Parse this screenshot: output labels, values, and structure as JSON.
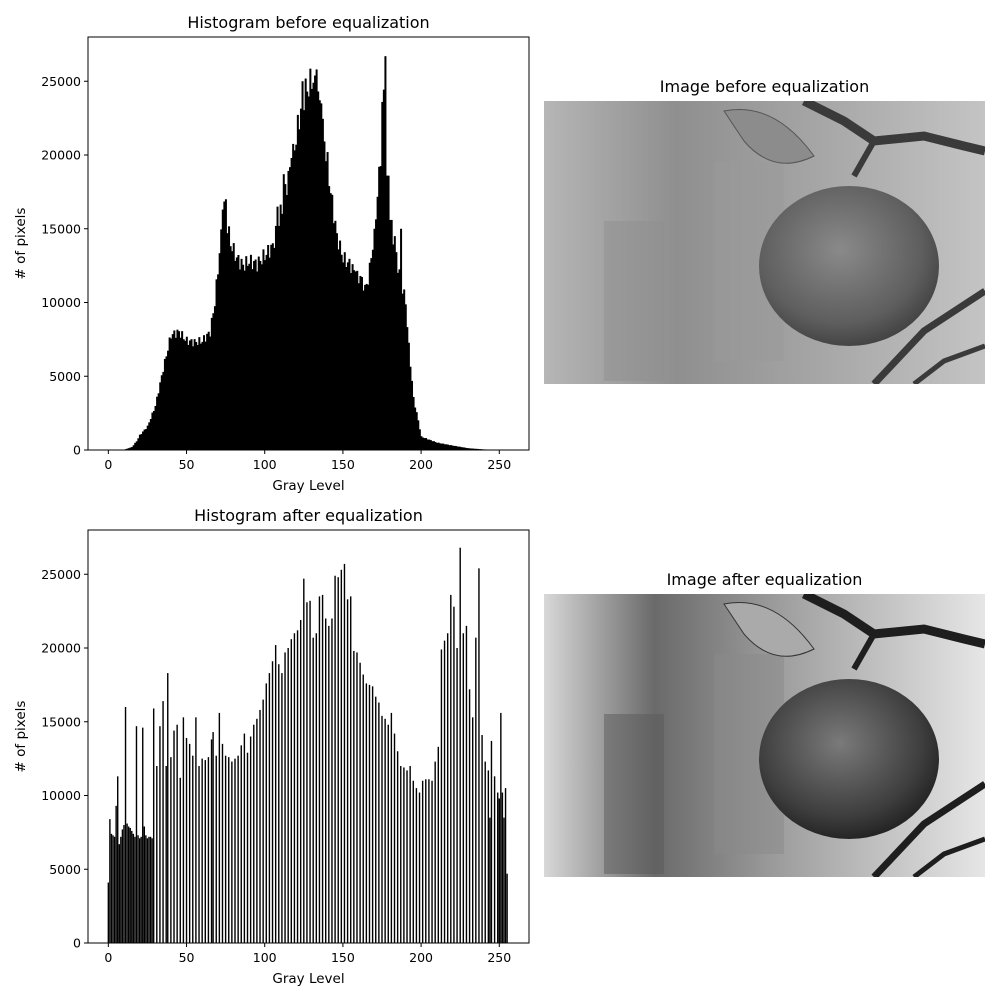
{
  "chart_data": [
    {
      "type": "bar",
      "title": "Histogram before equalization",
      "xlabel": "Gray Level",
      "ylabel": "# of pixels",
      "xlim": [
        -13,
        269
      ],
      "ylim": [
        0,
        28000
      ],
      "xticks": [
        0,
        50,
        100,
        150,
        200,
        250
      ],
      "yticks": [
        0,
        5000,
        10000,
        15000,
        20000,
        25000
      ],
      "grid": false,
      "shape": {
        "anchors": [
          [
            0,
            0
          ],
          [
            10,
            20
          ],
          [
            15,
            200
          ],
          [
            18,
            600
          ],
          [
            20,
            1000
          ],
          [
            25,
            1600
          ],
          [
            30,
            3000
          ],
          [
            35,
            5500
          ],
          [
            40,
            7800
          ],
          [
            45,
            8000
          ],
          [
            50,
            7400
          ],
          [
            55,
            7300
          ],
          [
            60,
            7400
          ],
          [
            65,
            8000
          ],
          [
            68,
            10000
          ],
          [
            72,
            14500
          ],
          [
            74,
            16500
          ],
          [
            78,
            14000
          ],
          [
            82,
            13000
          ],
          [
            86,
            12500
          ],
          [
            90,
            12800
          ],
          [
            95,
            12600
          ],
          [
            100,
            13200
          ],
          [
            105,
            13800
          ],
          [
            110,
            16000
          ],
          [
            115,
            18500
          ],
          [
            118,
            20000
          ],
          [
            122,
            22500
          ],
          [
            126,
            24500
          ],
          [
            130,
            25000
          ],
          [
            134,
            24000
          ],
          [
            138,
            21000
          ],
          [
            142,
            17500
          ],
          [
            146,
            14500
          ],
          [
            150,
            13000
          ],
          [
            155,
            12500
          ],
          [
            160,
            11500
          ],
          [
            165,
            11000
          ],
          [
            168,
            13000
          ],
          [
            171,
            16000
          ],
          [
            174,
            20000
          ],
          [
            176,
            24000
          ],
          [
            178,
            18000
          ],
          [
            181,
            15000
          ],
          [
            184,
            13000
          ],
          [
            188,
            11000
          ],
          [
            190,
            10000
          ],
          [
            192,
            7000
          ],
          [
            195,
            3500
          ],
          [
            198,
            2000
          ],
          [
            200,
            900
          ],
          [
            210,
            500
          ],
          [
            220,
            300
          ],
          [
            230,
            120
          ],
          [
            240,
            40
          ],
          [
            255,
            0
          ]
        ],
        "spikes": [
          [
            73,
            16300
          ],
          [
            75,
            17000
          ],
          [
            108,
            16500
          ],
          [
            112,
            18700
          ],
          [
            117,
            19800
          ],
          [
            120,
            20700
          ],
          [
            124,
            25000
          ],
          [
            127,
            24300
          ],
          [
            131,
            24900
          ],
          [
            133,
            25800
          ],
          [
            136,
            23500
          ],
          [
            140,
            20200
          ],
          [
            148,
            14200
          ],
          [
            158,
            12100
          ],
          [
            161,
            11800
          ],
          [
            170,
            15000
          ],
          [
            173,
            19200
          ],
          [
            175,
            23600
          ],
          [
            177,
            26700
          ],
          [
            179,
            18600
          ],
          [
            183,
            14500
          ],
          [
            187,
            15000
          ]
        ]
      }
    },
    {
      "type": "bar",
      "title": "Histogram after equalization",
      "xlabel": "Gray Level",
      "ylabel": "# of pixels",
      "xlim": [
        -13,
        269
      ],
      "ylim": [
        0,
        28000
      ],
      "xticks": [
        0,
        50,
        100,
        150,
        200,
        250
      ],
      "yticks": [
        0,
        5000,
        10000,
        15000,
        20000,
        25000
      ],
      "grid": false,
      "bars": [
        [
          0,
          4100
        ],
        [
          1,
          8400
        ],
        [
          2,
          7400
        ],
        [
          3,
          7300
        ],
        [
          4,
          7200
        ],
        [
          5,
          9300
        ],
        [
          6,
          11300
        ],
        [
          7,
          6700
        ],
        [
          8,
          7200
        ],
        [
          9,
          7700
        ],
        [
          10,
          8000
        ],
        [
          11,
          16000
        ],
        [
          12,
          8100
        ],
        [
          13,
          7900
        ],
        [
          14,
          7800
        ],
        [
          15,
          7600
        ],
        [
          16,
          7400
        ],
        [
          17,
          7200
        ],
        [
          18,
          14700
        ],
        [
          19,
          7300
        ],
        [
          20,
          7100
        ],
        [
          21,
          7200
        ],
        [
          22,
          14600
        ],
        [
          23,
          7900
        ],
        [
          24,
          7300
        ],
        [
          25,
          7100
        ],
        [
          26,
          7200
        ],
        [
          27,
          7200
        ],
        [
          28,
          7100
        ],
        [
          29,
          15900
        ],
        [
          31,
          12000
        ],
        [
          33,
          14700
        ],
        [
          35,
          16400
        ],
        [
          37,
          12000
        ],
        [
          38,
          18300
        ],
        [
          40,
          12600
        ],
        [
          42,
          14400
        ],
        [
          44,
          14800
        ],
        [
          46,
          11200
        ],
        [
          48,
          15300
        ],
        [
          50,
          13900
        ],
        [
          52,
          13500
        ],
        [
          54,
          12700
        ],
        [
          56,
          15300
        ],
        [
          58,
          12000
        ],
        [
          60,
          12500
        ],
        [
          62,
          12400
        ],
        [
          64,
          12600
        ],
        [
          66,
          13800
        ],
        [
          67,
          14300
        ],
        [
          69,
          12700
        ],
        [
          71,
          15600
        ],
        [
          73,
          13500
        ],
        [
          75,
          12700
        ],
        [
          77,
          12600
        ],
        [
          79,
          12300
        ],
        [
          81,
          12500
        ],
        [
          83,
          12700
        ],
        [
          85,
          13400
        ],
        [
          87,
          14200
        ],
        [
          89,
          12900
        ],
        [
          91,
          14000
        ],
        [
          93,
          14800
        ],
        [
          95,
          15200
        ],
        [
          97,
          15800
        ],
        [
          99,
          16500
        ],
        [
          101,
          17600
        ],
        [
          103,
          18300
        ],
        [
          105,
          19100
        ],
        [
          107,
          20200
        ],
        [
          109,
          18900
        ],
        [
          111,
          18300
        ],
        [
          113,
          19700
        ],
        [
          115,
          20000
        ],
        [
          117,
          20600
        ],
        [
          119,
          21000
        ],
        [
          121,
          21200
        ],
        [
          123,
          21900
        ],
        [
          125,
          24700
        ],
        [
          127,
          23100
        ],
        [
          129,
          23200
        ],
        [
          131,
          20700
        ],
        [
          133,
          21000
        ],
        [
          135,
          23500
        ],
        [
          137,
          23600
        ],
        [
          139,
          22000
        ],
        [
          141,
          21500
        ],
        [
          143,
          22000
        ],
        [
          145,
          24900
        ],
        [
          147,
          24800
        ],
        [
          149,
          25300
        ],
        [
          151,
          25700
        ],
        [
          153,
          23300
        ],
        [
          155,
          23500
        ],
        [
          157,
          19800
        ],
        [
          159,
          19700
        ],
        [
          161,
          19000
        ],
        [
          163,
          18200
        ],
        [
          165,
          17600
        ],
        [
          167,
          17500
        ],
        [
          169,
          17400
        ],
        [
          171,
          16700
        ],
        [
          173,
          16300
        ],
        [
          175,
          15400
        ],
        [
          177,
          15200
        ],
        [
          179,
          14800
        ],
        [
          181,
          15600
        ],
        [
          183,
          14200
        ],
        [
          185,
          13000
        ],
        [
          187,
          12000
        ],
        [
          189,
          11900
        ],
        [
          191,
          11700
        ],
        [
          193,
          12000
        ],
        [
          195,
          11000
        ],
        [
          197,
          10500
        ],
        [
          199,
          10200
        ],
        [
          201,
          11000
        ],
        [
          203,
          11100
        ],
        [
          205,
          11100
        ],
        [
          207,
          11000
        ],
        [
          209,
          12300
        ],
        [
          211,
          13300
        ],
        [
          213,
          19900
        ],
        [
          215,
          20500
        ],
        [
          217,
          21000
        ],
        [
          219,
          23600
        ],
        [
          221,
          22800
        ],
        [
          223,
          20000
        ],
        [
          225,
          26800
        ],
        [
          227,
          21000
        ],
        [
          229,
          21500
        ],
        [
          231,
          17200
        ],
        [
          233,
          15300
        ],
        [
          235,
          20700
        ],
        [
          237,
          25400
        ],
        [
          239,
          14100
        ],
        [
          241,
          12300
        ],
        [
          243,
          11700
        ],
        [
          244,
          8500
        ],
        [
          245,
          13700
        ],
        [
          247,
          11300
        ],
        [
          249,
          10200
        ],
        [
          250,
          9800
        ],
        [
          251,
          15600
        ],
        [
          252,
          10200
        ],
        [
          253,
          8500
        ],
        [
          254,
          10500
        ],
        [
          255,
          4700
        ]
      ]
    }
  ],
  "images": [
    {
      "title": "Image before equalization",
      "subject": "apple-on-branch-grayscale"
    },
    {
      "title": "Image after equalization",
      "subject": "apple-on-branch-grayscale-equalized"
    }
  ]
}
